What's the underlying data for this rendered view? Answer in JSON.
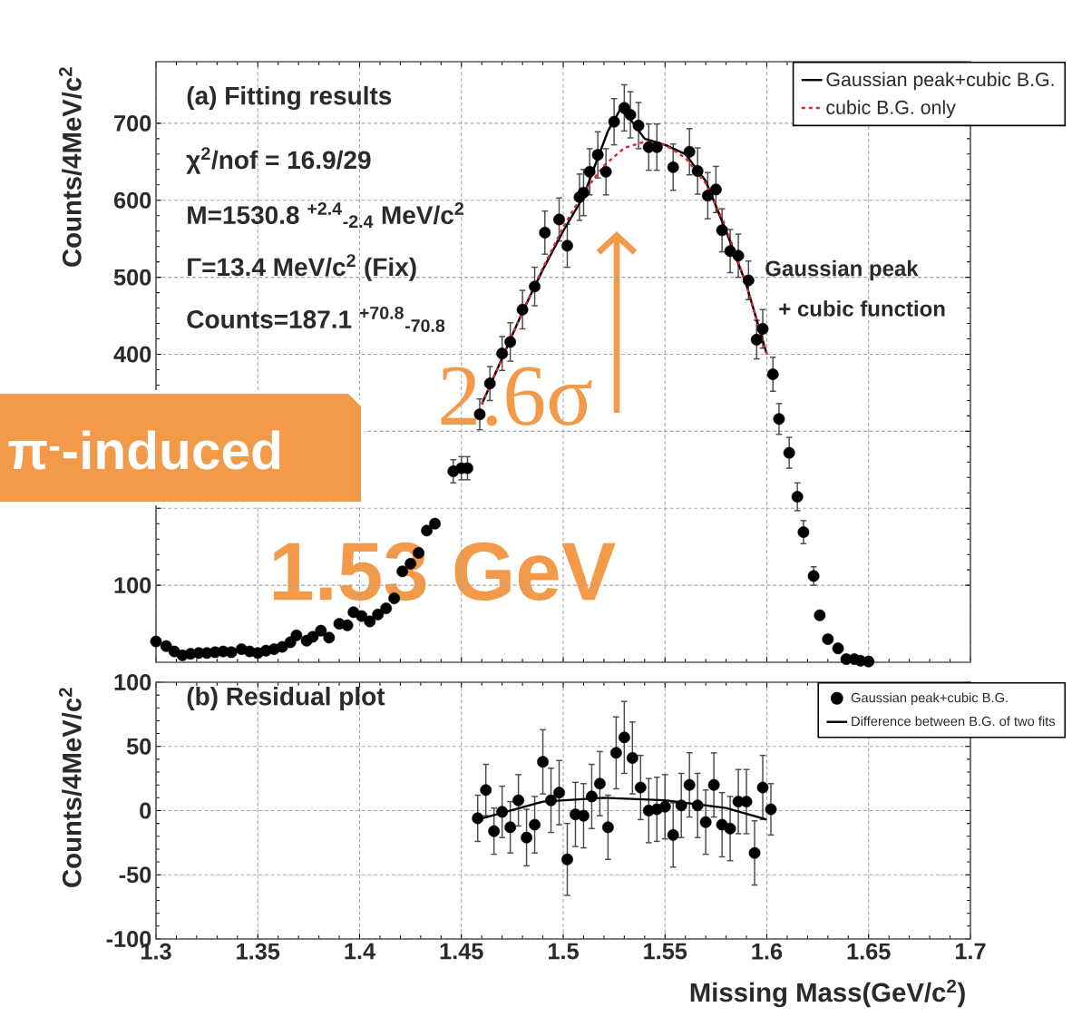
{
  "chart_data": [
    {
      "type": "scatter",
      "ylabel": "Counts/4MeV/c$^{2}$",
      "xlim": [
        1.3,
        1.7
      ],
      "ylim": [
        0,
        780
      ],
      "xticks": [
        1.3,
        1.35,
        1.4,
        1.45,
        1.5,
        1.55,
        1.6,
        1.65,
        1.7
      ],
      "yticks": [
        100,
        {
          "value": 200,
          "label": null
        },
        {
          "value": 300,
          "label": null
        },
        400,
        500,
        600,
        700
      ],
      "tick_labels": "y",
      "grid": true,
      "legend": "top right",
      "annotations": [
        "(a) Fitting results",
        "χ$^{2}$/nof = 16.9/29",
        "M=1530.8 $^{+2.4}$$_{-2.4}$ MeV/c$^{2}$",
        "Γ=13.4 MeV/c$^{2}$ (Fix)",
        "Counts=187.1 $^{+70.8}$$_{-70.8}$",
        "Gaussian peak",
        "+ cubic function",
        "2.6σ",
        "1.53 GeV",
        "π$^{-}$-induced"
      ],
      "series": [
        {
          "type": "scatter",
          "marker": "circle",
          "color": "#000000",
          "x": [
            1.3,
            1.305,
            1.309,
            1.313,
            1.317,
            1.321,
            1.325,
            1.329,
            1.333,
            1.337,
            1.342,
            1.346,
            1.35,
            1.354,
            1.358,
            1.362,
            1.366,
            1.369,
            1.374,
            1.377,
            1.381,
            1.385,
            1.39,
            1.394,
            1.397,
            1.401,
            1.405,
            1.409,
            1.413,
            1.417,
            1.421,
            1.425,
            1.429,
            1.433,
            1.437,
            1.446,
            1.45,
            1.453,
            1.459,
            1.464,
            1.47,
            1.474,
            1.48,
            1.486,
            1.491,
            1.498,
            1.502,
            1.508,
            1.51,
            1.513,
            1.517,
            1.521,
            1.525,
            1.53,
            1.533,
            1.537,
            1.542,
            1.546,
            1.554,
            1.562,
            1.566,
            1.571,
            1.575,
            1.578,
            1.582,
            1.586,
            1.591,
            1.595,
            1.598,
            1.603,
            1.606,
            1.611,
            1.615,
            1.618,
            1.623,
            1.626,
            1.63,
            1.635,
            1.639,
            1.643,
            1.646,
            1.65
          ],
          "values": [
            27,
            21,
            14,
            9,
            11,
            12,
            12,
            13,
            14,
            13,
            17,
            14,
            12,
            15,
            17,
            20,
            26,
            35,
            28,
            33,
            41,
            32,
            50,
            48,
            65,
            60,
            53,
            62,
            70,
            83,
            118,
            128,
            142,
            171,
            180,
            248,
            252,
            252,
            322,
            362,
            401,
            416,
            458,
            488,
            558,
            575,
            541,
            604,
            610,
            637,
            659,
            637,
            702,
            720,
            711,
            697,
            669,
            669,
            643,
            663,
            638,
            606,
            614,
            561,
            534,
            528,
            496,
            419,
            433,
            374,
            316,
            272,
            215,
            169,
            112,
            61,
            30,
            18,
            4,
            4,
            2,
            1
          ],
          "errors": [
            null,
            null,
            null,
            null,
            null,
            null,
            null,
            null,
            null,
            null,
            null,
            null,
            null,
            null,
            null,
            null,
            null,
            null,
            null,
            null,
            null,
            null,
            null,
            null,
            null,
            null,
            null,
            null,
            null,
            null,
            null,
            null,
            null,
            null,
            null,
            15,
            15,
            15,
            20,
            22,
            22,
            25,
            25,
            25,
            28,
            28,
            28,
            30,
            30,
            30,
            30,
            30,
            30,
            30,
            30,
            30,
            30,
            30,
            30,
            30,
            30,
            30,
            30,
            28,
            28,
            28,
            25,
            25,
            25,
            22,
            20,
            20,
            18,
            15,
            12,
            null,
            null,
            null,
            null,
            null,
            null,
            null
          ]
        },
        {
          "type": "line",
          "name": "Gaussian peak+cubic B.G.",
          "color": "#000000",
          "line_style": "solid",
          "marker": "none",
          "x": [
            1.46,
            1.47,
            1.48,
            1.49,
            1.5,
            1.51,
            1.515,
            1.522,
            1.528,
            1.533,
            1.54,
            1.55,
            1.56,
            1.57,
            1.58,
            1.59,
            1.6
          ],
          "values": [
            335,
            395,
            455,
            510,
            560,
            605,
            641,
            690,
            718,
            705,
            680,
            672,
            660,
            625,
            560,
            490,
            400
          ]
        },
        {
          "type": "line",
          "name": "cubic B.G. only",
          "color": "#e3262b",
          "line_style": "dashed",
          "marker": "none",
          "x": [
            1.46,
            1.47,
            1.48,
            1.49,
            1.5,
            1.51,
            1.52,
            1.53,
            1.54,
            1.55,
            1.56,
            1.57,
            1.58,
            1.59,
            1.6
          ],
          "values": [
            335,
            395,
            455,
            512,
            565,
            610,
            645,
            668,
            676,
            672,
            655,
            622,
            565,
            490,
            400
          ]
        }
      ]
    },
    {
      "type": "scatter",
      "xlabel": "Missing Mass(GeV/c$^{2}$)",
      "ylabel": "Counts/4MeV/c$^{2}$",
      "xlim": [
        1.3,
        1.7
      ],
      "ylim": [
        -100,
        100
      ],
      "xticks": [
        1.3,
        1.35,
        1.4,
        1.45,
        1.5,
        1.55,
        1.6,
        1.65,
        1.7
      ],
      "yticks": [
        -100,
        -50,
        0,
        50,
        100
      ],
      "grid": true,
      "legend": "top right",
      "annotations": [
        "(b) Residual plot"
      ],
      "series": [
        {
          "type": "scatter",
          "name": "Gaussian peak+cubic B.G.",
          "marker": "circle",
          "color": "#000000",
          "x": [
            1.458,
            1.462,
            1.466,
            1.47,
            1.474,
            1.478,
            1.482,
            1.486,
            1.49,
            1.494,
            1.498,
            1.502,
            1.506,
            1.51,
            1.514,
            1.518,
            1.522,
            1.526,
            1.53,
            1.534,
            1.538,
            1.542,
            1.546,
            1.55,
            1.554,
            1.558,
            1.562,
            1.566,
            1.57,
            1.574,
            1.578,
            1.582,
            1.586,
            1.59,
            1.594,
            1.598,
            1.602
          ],
          "values": [
            -6,
            16,
            -16,
            -1,
            -13,
            8,
            -21,
            -11,
            38,
            8,
            14,
            -38,
            -3,
            -4,
            11,
            21,
            -13,
            45,
            57,
            41,
            18,
            0,
            1,
            3,
            -19,
            4,
            20,
            4,
            -9,
            20,
            -11,
            -14,
            7,
            7,
            -33,
            18,
            1
          ],
          "errors": [
            18,
            20,
            18,
            20,
            20,
            20,
            22,
            22,
            25,
            25,
            25,
            28,
            25,
            25,
            25,
            25,
            25,
            28,
            28,
            28,
            25,
            25,
            25,
            25,
            25,
            25,
            25,
            25,
            25,
            25,
            25,
            25,
            25,
            25,
            25,
            25,
            20
          ]
        },
        {
          "type": "line",
          "name": "Difference between B.G. of two fits",
          "color": "#000000",
          "line_style": "solid",
          "marker": "none",
          "x": [
            1.458,
            1.49,
            1.52,
            1.55,
            1.58,
            1.6
          ],
          "values": [
            -7,
            7,
            10,
            8,
            2,
            -7
          ]
        }
      ]
    }
  ]
}
